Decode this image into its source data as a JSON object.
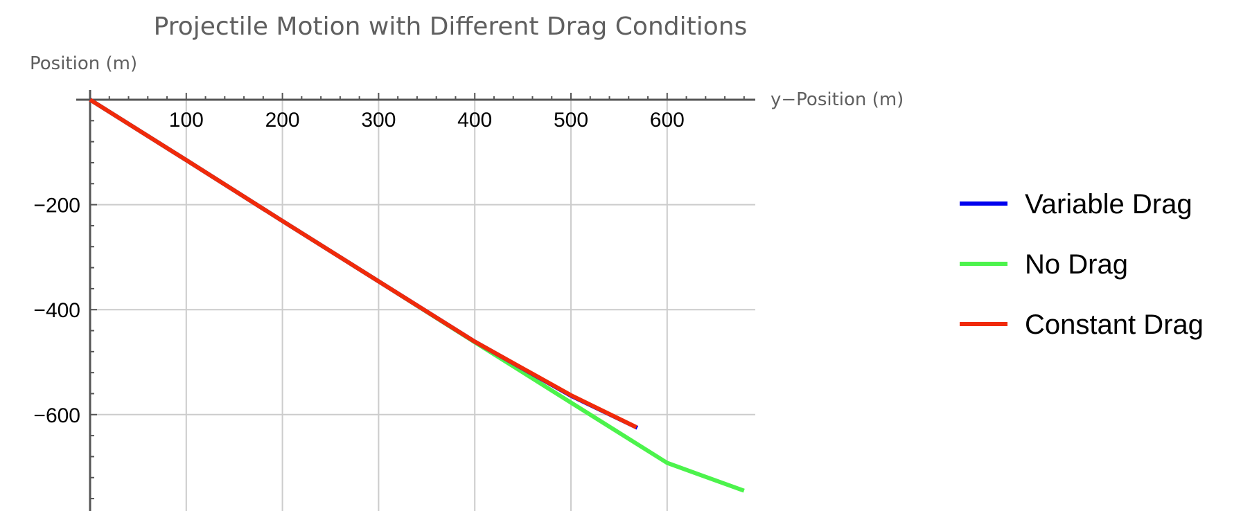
{
  "chart_data": {
    "type": "line",
    "title": "Projectile Motion with Different Drag Conditions",
    "xlabel": "y−Position (m)",
    "ylabel": "Position (m)",
    "xlim": [
      -15,
      690
    ],
    "ylim": [
      -780,
      0
    ],
    "x_ticks": [
      100,
      200,
      300,
      400,
      500,
      600
    ],
    "x_tick_labels": [
      "100",
      "200",
      "300",
      "400",
      "500",
      "600"
    ],
    "y_ticks": [
      -200,
      -400,
      -600
    ],
    "y_tick_labels": [
      "−200",
      "−400",
      "−600"
    ],
    "grid": true,
    "legend_position": "right",
    "series": [
      {
        "name": "Variable Drag",
        "color": "#0000ee",
        "x": [
          0,
          100,
          200,
          300,
          400,
          500,
          569
        ],
        "y": [
          0,
          -115,
          -231,
          -346,
          -461,
          -564,
          -625
        ]
      },
      {
        "name": "No Drag",
        "color": "#4cf34c",
        "x": [
          0,
          100,
          200,
          300,
          400,
          500,
          600,
          680
        ],
        "y": [
          0,
          -115,
          -231,
          -346,
          -462,
          -577,
          -692,
          -745
        ]
      },
      {
        "name": "Constant Drag",
        "color": "#f02a0a",
        "x": [
          0,
          100,
          200,
          300,
          400,
          500,
          568
        ],
        "y": [
          0,
          -115,
          -231,
          -346,
          -461,
          -563,
          -624
        ]
      }
    ]
  }
}
